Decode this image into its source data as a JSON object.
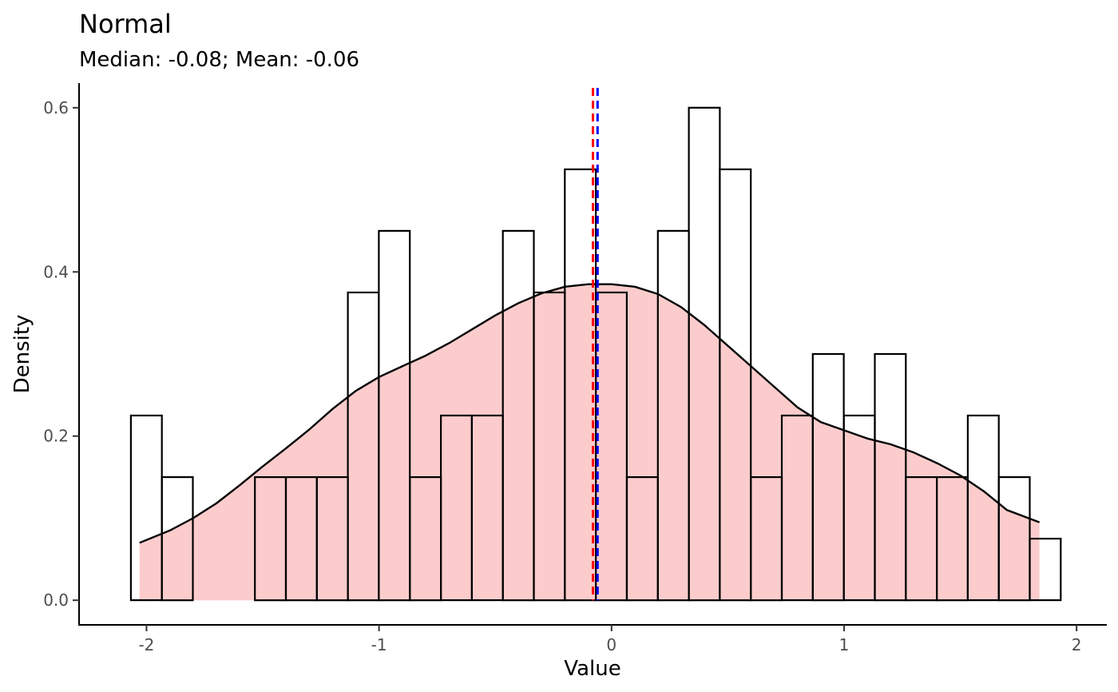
{
  "chart_data": {
    "type": "histogram",
    "title": "Normal",
    "subtitle": "Median: -0.08; Mean: -0.06",
    "xlabel": "Value",
    "ylabel": "Density",
    "xlim": [
      -2.29,
      2.13
    ],
    "ylim": [
      -0.03,
      0.63
    ],
    "x_ticks": [
      -2,
      -1,
      0,
      1,
      2
    ],
    "x_tick_labels": [
      "-2",
      "-1",
      "0",
      "1",
      "2"
    ],
    "y_ticks": [
      0,
      0.2,
      0.4,
      0.6
    ],
    "y_tick_labels": [
      "0.0",
      "0.2",
      "0.4",
      "0.6"
    ],
    "grid": false,
    "histogram": {
      "bin_start": -2.067,
      "bin_width": 0.1333,
      "densities": [
        0.225,
        0.15,
        0.0,
        0.0,
        0.15,
        0.15,
        0.15,
        0.375,
        0.45,
        0.15,
        0.225,
        0.225,
        0.45,
        0.375,
        0.525,
        0.375,
        0.15,
        0.45,
        0.6,
        0.525,
        0.15,
        0.225,
        0.3,
        0.225,
        0.3,
        0.15,
        0.15,
        0.225,
        0.15,
        0.075
      ],
      "outline_color": "#000000",
      "fill_color": "none"
    },
    "density": {
      "x": [
        -2.03,
        -1.9,
        -1.8,
        -1.7,
        -1.6,
        -1.5,
        -1.4,
        -1.3,
        -1.2,
        -1.1,
        -1.0,
        -0.9,
        -0.8,
        -0.7,
        -0.6,
        -0.5,
        -0.4,
        -0.3,
        -0.2,
        -0.1,
        0.0,
        0.1,
        0.2,
        0.3,
        0.4,
        0.5,
        0.6,
        0.7,
        0.8,
        0.9,
        1.0,
        1.1,
        1.2,
        1.3,
        1.4,
        1.5,
        1.6,
        1.7,
        1.84
      ],
      "y": [
        0.07,
        0.085,
        0.1,
        0.118,
        0.14,
        0.163,
        0.185,
        0.208,
        0.233,
        0.255,
        0.272,
        0.285,
        0.298,
        0.313,
        0.33,
        0.347,
        0.362,
        0.374,
        0.382,
        0.385,
        0.385,
        0.382,
        0.373,
        0.357,
        0.335,
        0.31,
        0.285,
        0.26,
        0.235,
        0.217,
        0.207,
        0.197,
        0.19,
        0.18,
        0.167,
        0.152,
        0.133,
        0.11,
        0.095
      ],
      "line_color": "#000000",
      "fill_color": "#fccccc"
    },
    "reference_lines": [
      {
        "x": -0.08,
        "color": "#ff0000",
        "style": "dashed"
      },
      {
        "x": -0.06,
        "color": "#0000ff",
        "style": "dashed"
      }
    ]
  }
}
